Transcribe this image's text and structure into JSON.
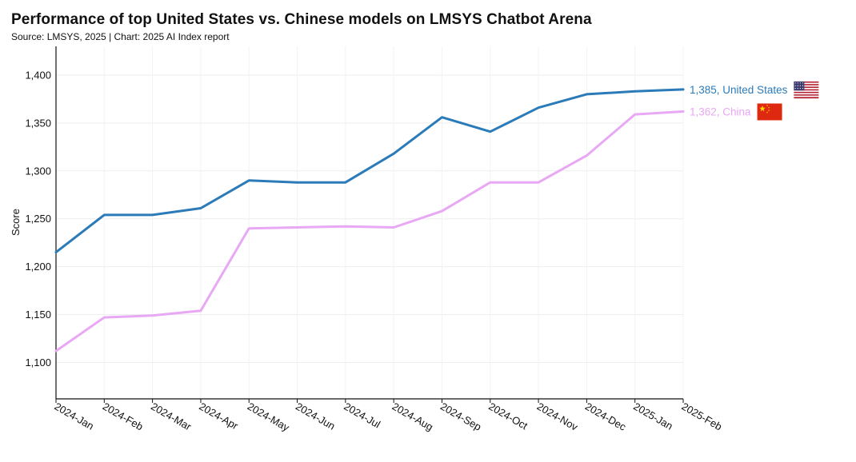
{
  "header": {
    "title": "Performance of top United States vs. Chinese models on LMSYS Chatbot Arena",
    "subtitle": "Source: LMSYS, 2025 | Chart: 2025 AI Index report"
  },
  "chart_data": {
    "type": "line",
    "title": "Performance of top United States vs. Chinese models on LMSYS Chatbot Arena",
    "subtitle": "Source: LMSYS, 2025 | Chart: 2025 AI Index report",
    "xlabel": "",
    "ylabel": "Score",
    "x": [
      "2024-Jan",
      "2024-Feb",
      "2024-Mar",
      "2024-Apr",
      "2024-May",
      "2024-Jun",
      "2024-Jul",
      "2024-Aug",
      "2024-Sep",
      "2024-Oct",
      "2024-Nov",
      "2024-Dec",
      "2025-Jan",
      "2025-Feb"
    ],
    "ylim": [
      1062,
      1430
    ],
    "yticks": [
      1100,
      1150,
      1200,
      1250,
      1300,
      1350,
      1400
    ],
    "ytick_labels": [
      "1,100",
      "1,150",
      "1,200",
      "1,250",
      "1,300",
      "1,350",
      "1,400"
    ],
    "grid": true,
    "series": [
      {
        "key": "us",
        "name": "United States",
        "color": "#2b7bb9",
        "values": [
          1215,
          1254,
          1254,
          1261,
          1290,
          1288,
          1288,
          1318,
          1356,
          1341,
          1366,
          1380,
          1383,
          1385
        ],
        "end_label": "1,385, United States",
        "flag_icon": "us-flag-icon"
      },
      {
        "key": "cn",
        "name": "China",
        "color": "#e8a8f4",
        "values": [
          1112,
          1147,
          1149,
          1154,
          1240,
          1241,
          1242,
          1241,
          1258,
          1288,
          1288,
          1316,
          1359,
          1362
        ],
        "end_label": "1,362, China",
        "flag_icon": "china-flag-icon"
      }
    ]
  }
}
